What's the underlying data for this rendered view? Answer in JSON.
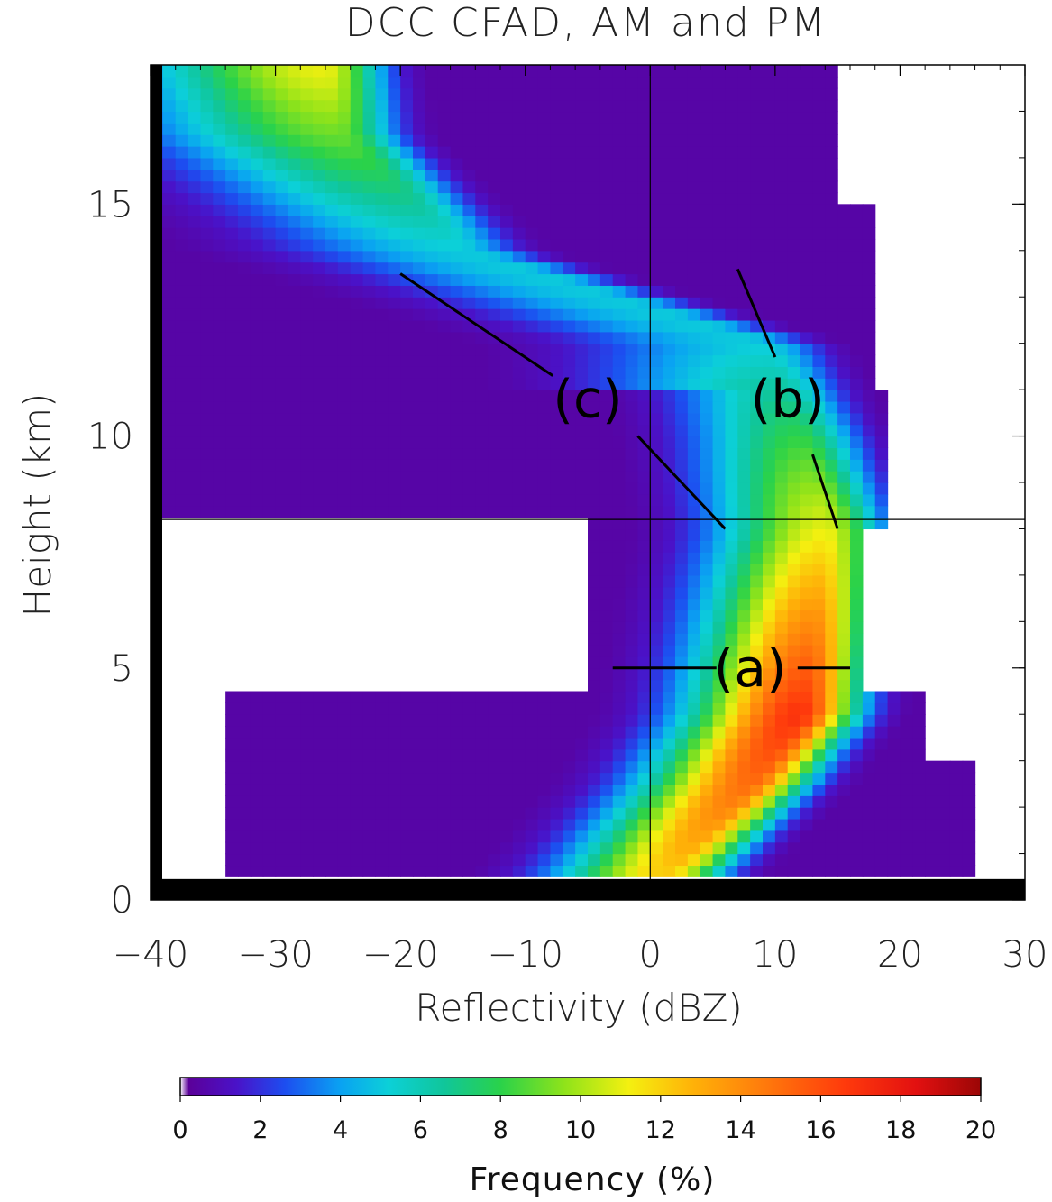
{
  "chart_data": {
    "type": "heatmap",
    "title": "DCC CFAD, AM and PM",
    "xlabel": "Reflectivity (dBZ)",
    "ylabel": "Height (km)",
    "xlim": [
      -40,
      30
    ],
    "ylim": [
      0,
      18
    ],
    "xticks": [
      -40,
      -30,
      -20,
      -10,
      0,
      10,
      20,
      30
    ],
    "xtick_labels": [
      "−40",
      "−30",
      "−20",
      "−10",
      "0",
      "10",
      "20",
      "30"
    ],
    "yticks": [
      0,
      5,
      10,
      15
    ],
    "ytick_labels": [
      "0",
      "5",
      "10",
      "15"
    ],
    "colorbar": {
      "label": "Frequency (%)",
      "range": [
        0,
        20
      ],
      "ticks": [
        0,
        2,
        4,
        6,
        8,
        10,
        12,
        14,
        16,
        18,
        20
      ],
      "tick_labels": [
        "0",
        "2",
        "4",
        "6",
        "8",
        "10",
        "12",
        "14",
        "16",
        "18",
        "20"
      ],
      "colormap": "rainbow"
    },
    "reference_lines": {
      "vertical_x": 0,
      "horizontal_y": 8.2
    },
    "annotations": [
      {
        "label": "(a)",
        "x": 8,
        "y": 5
      },
      {
        "label": "(b)",
        "x": 11,
        "y": 10.8
      },
      {
        "label": "(c)",
        "x": -5,
        "y": 10.8
      }
    ],
    "cells_note_freq_units": "%",
    "ridge_profile": [
      {
        "height": 0.5,
        "dbz_peak": 1,
        "freq_peak": 12
      },
      {
        "height": 2.5,
        "dbz_peak": 8,
        "freq_peak": 15
      },
      {
        "height": 4.0,
        "dbz_peak": 12,
        "freq_peak": 17
      },
      {
        "height": 6.0,
        "dbz_peak": 13,
        "freq_peak": 14
      },
      {
        "height": 8.0,
        "dbz_peak": 14,
        "freq_peak": 11
      },
      {
        "height": 10.0,
        "dbz_peak": 12,
        "freq_peak": 8
      },
      {
        "height": 12.0,
        "dbz_peak": 9,
        "freq_peak": 5
      },
      {
        "height": 14.0,
        "dbz_peak": -15,
        "freq_peak": 5
      },
      {
        "height": 16.5,
        "dbz_peak": -25,
        "freq_peak": 9
      },
      {
        "height": 17.8,
        "dbz_peak": -26,
        "freq_peak": 11
      }
    ]
  }
}
